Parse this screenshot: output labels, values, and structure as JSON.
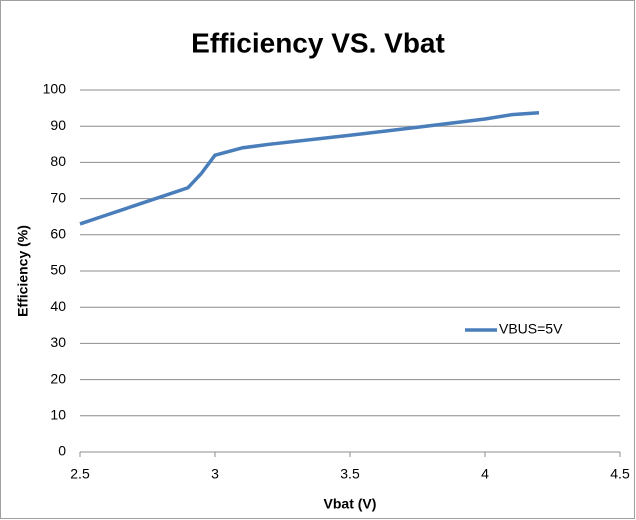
{
  "chart_data": {
    "type": "line",
    "title": "Efficiency VS. Vbat",
    "x_label": "Vbat (V)",
    "y_label": "Efficiency (%)",
    "x": [
      2.5,
      2.6,
      2.7,
      2.8,
      2.9,
      2.95,
      3.0,
      3.1,
      3.2,
      3.5,
      3.75,
      4.0,
      4.1,
      4.2
    ],
    "series": [
      {
        "name": "VBUS=5V",
        "color": "#4a7ebb",
        "values": [
          63,
          65.5,
          68,
          70.5,
          73,
          77,
          82,
          84,
          85,
          87.5,
          89.7,
          92,
          93.2,
          93.7
        ]
      }
    ],
    "xlim": [
      2.5,
      4.5
    ],
    "xticks": [
      2.5,
      3,
      3.5,
      4,
      4.5
    ],
    "ylim": [
      0,
      100
    ],
    "yticks": [
      0,
      10,
      20,
      30,
      40,
      50,
      60,
      70,
      80,
      90,
      100
    ],
    "grid": true,
    "legend": "right"
  }
}
